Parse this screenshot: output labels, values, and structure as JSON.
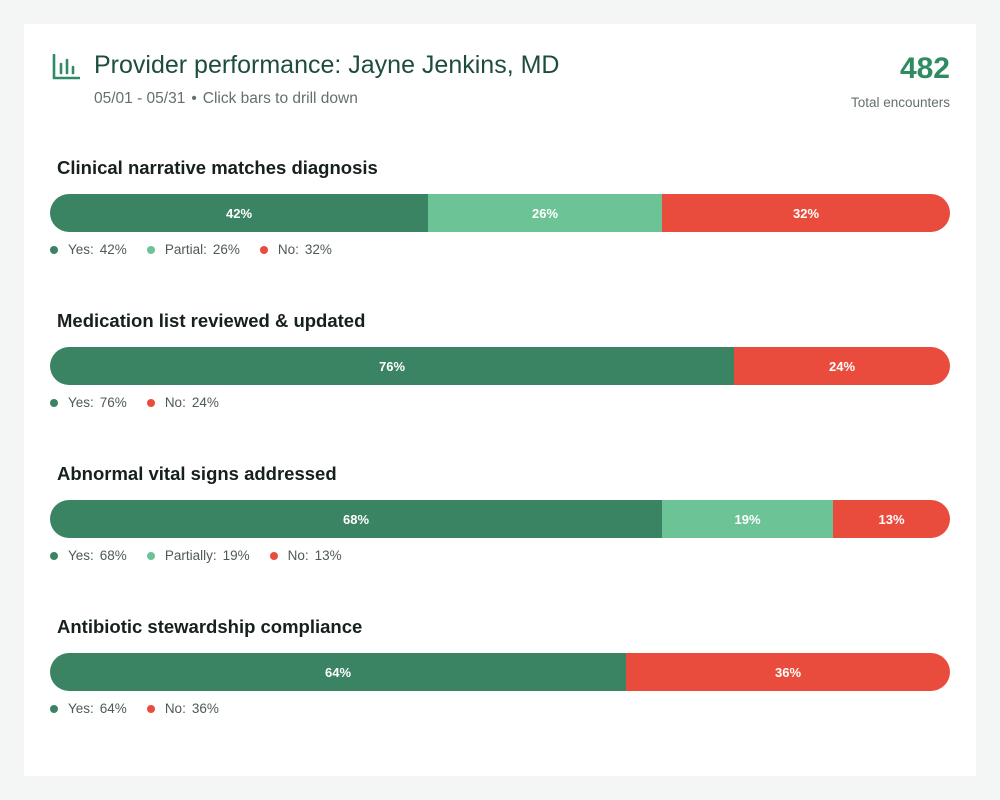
{
  "header": {
    "title": "Provider performance: Jayne Jenkins, MD",
    "date_range": "05/01 - 05/31",
    "separator": "•",
    "hint": "Click bars to drill down",
    "total_value": "482",
    "total_label": "Total encounters"
  },
  "colors": {
    "yes": "#3a8363",
    "partial": "#6cc396",
    "no": "#e94c3c",
    "accent": "#2e8b62"
  },
  "chart_data": {
    "type": "bar",
    "orientation": "horizontal",
    "stacked": true,
    "unit": "%",
    "xlim": [
      0,
      100
    ],
    "metrics": [
      {
        "title": "Clinical narrative matches diagnosis",
        "segments": [
          {
            "key": "yes",
            "label": "Yes:",
            "value": 42,
            "text": "42%"
          },
          {
            "key": "partial",
            "label": "Partial:",
            "value": 26,
            "text": "26%"
          },
          {
            "key": "no",
            "label": "No:",
            "value": 32,
            "text": "32%"
          }
        ]
      },
      {
        "title": "Medication list reviewed & updated",
        "segments": [
          {
            "key": "yes",
            "label": "Yes:",
            "value": 76,
            "text": "76%"
          },
          {
            "key": "no",
            "label": "No:",
            "value": 24,
            "text": "24%"
          }
        ]
      },
      {
        "title": "Abnormal vital signs addressed",
        "segments": [
          {
            "key": "yes",
            "label": "Yes:",
            "value": 68,
            "text": "68%"
          },
          {
            "key": "partial",
            "label": "Partially:",
            "value": 19,
            "text": "19%"
          },
          {
            "key": "no",
            "label": "No:",
            "value": 13,
            "text": "13%"
          }
        ]
      },
      {
        "title": "Antibiotic stewardship compliance",
        "segments": [
          {
            "key": "yes",
            "label": "Yes:",
            "value": 64,
            "text": "64%"
          },
          {
            "key": "no",
            "label": "No:",
            "value": 36,
            "text": "36%"
          }
        ]
      }
    ]
  }
}
